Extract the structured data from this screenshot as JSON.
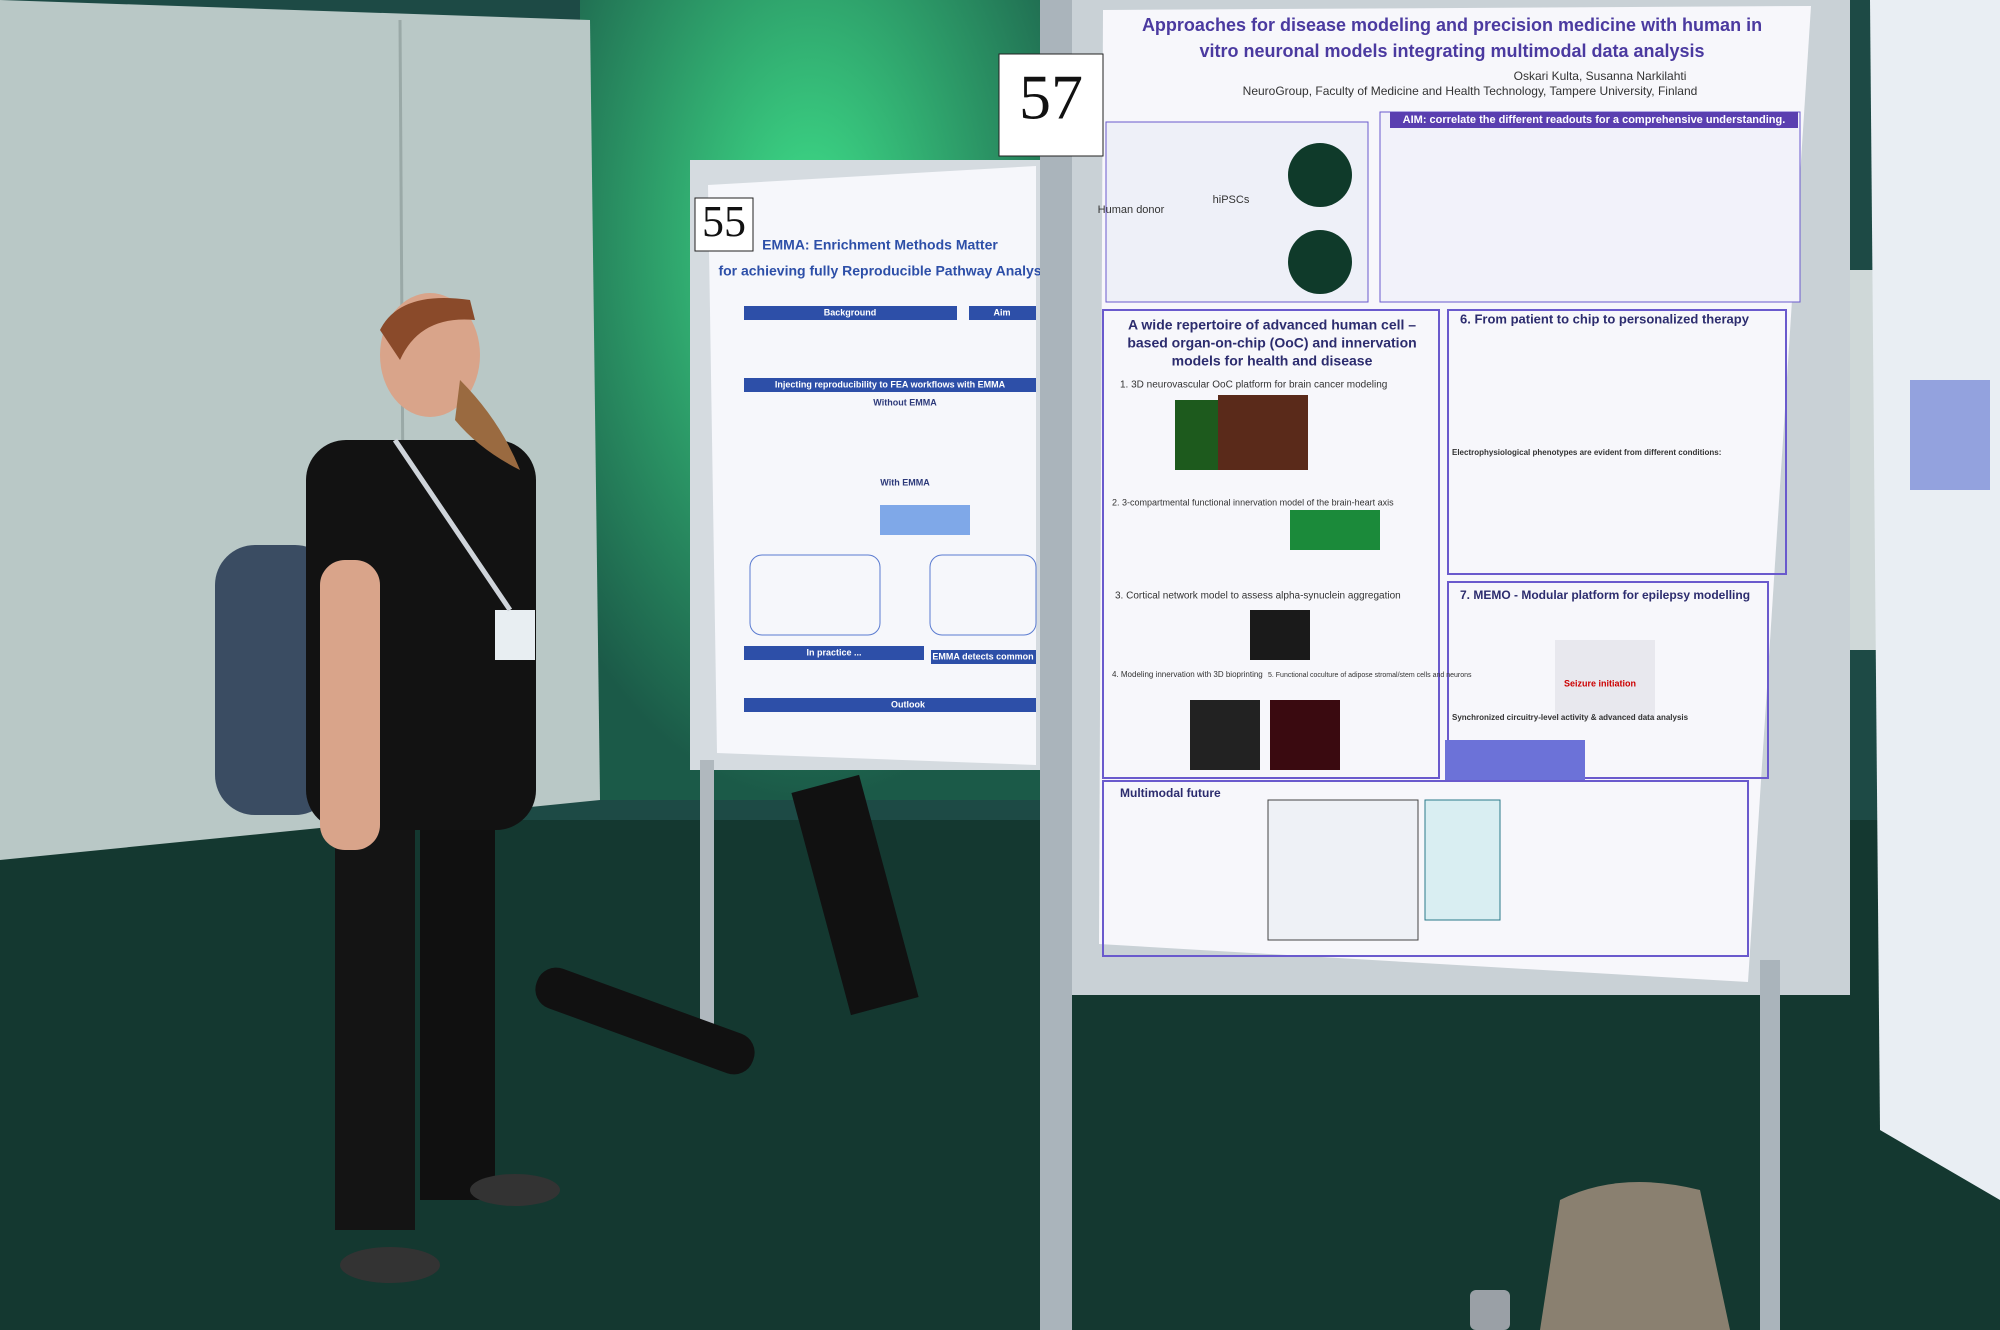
{
  "posters": {
    "p57": {
      "number": "57",
      "title_lines": [
        "Approaches for disease modeling and precision medicine with human in",
        "vitro neuronal models integrating multimodal data analysis"
      ],
      "authors": "Oskari Kulta, Susanna Narkilahti",
      "affiliation": "NeuroGroup, Faculty of Medicine and Health Technology, Tampere University, Finland",
      "aim": "AIM: correlate the different readouts for a comprehensive understanding.",
      "labels": [
        "Human donor",
        "hiPSCs"
      ],
      "left_heading_lines": [
        "A wide repertoire of advanced human cell –",
        "based organ-on-chip (OoC) and innervation",
        "models for health and disease"
      ],
      "sections": [
        "1. 3D neurovascular OoC platform for brain cancer modeling",
        "2. 3-compartmental functional innervation model of the brain-heart axis",
        "3. Cortical network model to assess alpha-synuclein aggregation",
        "4. Modeling innervation with 3D bioprinting",
        "5. Functional coculture of adipose stromal/stem cells and neurons",
        "6. From patient to chip to personalized therapy",
        "Electrophysiological phenotypes are evident from different conditions:",
        "7. MEMO - Modular platform for epilepsy modelling",
        "Seizure initiation",
        "Synchronized circuitry-level activity & advanced data analysis",
        "Multimodal future"
      ]
    },
    "p55": {
      "number": "55",
      "title_lines": [
        "EMMA: Enrichment Methods Matter",
        "for achieving fully Reproducible Pathway Analys"
      ],
      "headings": [
        "Background",
        "Aim",
        "Injecting reproducibility to FEA workflows with EMMA",
        "Without EMMA",
        "With EMMA",
        "In practice ...",
        "EMMA detects common",
        "Outlook"
      ]
    }
  }
}
